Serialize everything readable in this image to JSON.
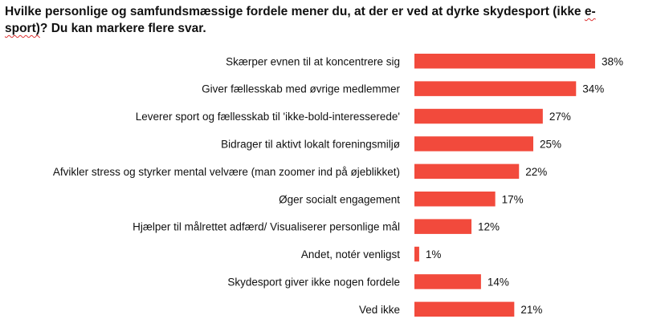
{
  "chart_data": {
    "type": "bar",
    "orientation": "horizontal",
    "title_main": "Hvilke personlige og samfundsmæssige fordele mener du, at der er ved at dyrke skydesport (ikke ",
    "title_flagged_1": "e-",
    "title_flagged_2": "sport)",
    "title_tail": "? Du kan markere flere svar.",
    "categories": [
      "Skærper evnen til at koncentrere sig",
      "Giver fællesskab med øvrige medlemmer",
      "Leverer sport og fællesskab til 'ikke-bold-interesserede'",
      "Bidrager til aktivt lokalt foreningsmiljø",
      "Afvikler stress og styrker mental velvære (man zoomer ind på øjeblikket)",
      "Øger socialt engagement",
      "Hjælper til målrettet adfærd/ Visualiserer personlige mål",
      "Andet, notér venligst",
      "Skydesport giver ikke nogen fordele",
      "Ved ikke"
    ],
    "values": [
      38,
      34,
      27,
      25,
      22,
      17,
      12,
      1,
      14,
      21
    ],
    "value_labels": [
      "38%",
      "34%",
      "27%",
      "25%",
      "22%",
      "17%",
      "12%",
      "1%",
      "14%",
      "21%"
    ],
    "unit": "%",
    "bar_color": "#f24a3c",
    "grid": false,
    "legend": "none"
  }
}
